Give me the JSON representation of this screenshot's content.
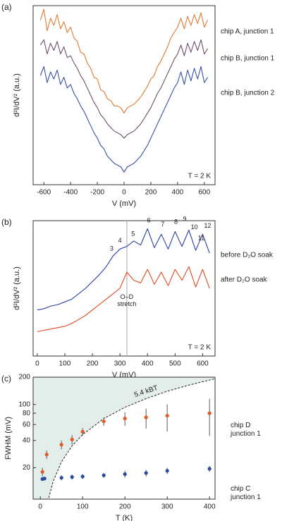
{
  "chart_data": [
    {
      "type": "line",
      "panel_label": "(a)",
      "xlabel": "V (mV)",
      "ylabel": "d²I/dV² (a.u.)",
      "annotation": "T = 2 K",
      "xlim": [
        -680,
        680
      ],
      "xticks": [
        -600,
        -400,
        -200,
        0,
        200,
        400,
        600
      ],
      "ylim": [
        0,
        10
      ],
      "x": [
        -625,
        -600,
        -575,
        -550,
        -525,
        -500,
        -475,
        -450,
        -425,
        -400,
        -375,
        -350,
        -325,
        -300,
        -275,
        -250,
        -225,
        -200,
        -175,
        -150,
        -125,
        -100,
        -75,
        -50,
        -25,
        0,
        25,
        50,
        75,
        100,
        125,
        150,
        175,
        200,
        225,
        250,
        275,
        300,
        325,
        350,
        375,
        400,
        425,
        450,
        475,
        500,
        525,
        550,
        575,
        600,
        625
      ],
      "series": [
        {
          "name": "chip A, junction 1",
          "color": "#e07a30",
          "values": [
            9.2,
            9.8,
            8.6,
            9.3,
            8.9,
            9.5,
            8.7,
            9.1,
            8.5,
            8.8,
            8.2,
            8.0,
            7.4,
            7.3,
            6.8,
            6.5,
            6.0,
            5.9,
            5.3,
            5.2,
            4.8,
            4.7,
            4.4,
            4.4,
            4.3,
            4.0,
            4.3,
            4.4,
            4.5,
            4.7,
            4.9,
            5.2,
            5.5,
            5.9,
            6.1,
            6.6,
            6.9,
            7.3,
            7.7,
            8.2,
            8.5,
            8.8,
            9.3,
            8.7,
            9.4,
            8.9,
            9.5,
            9.0,
            9.6,
            8.8,
            9.2
          ]
        },
        {
          "name": "chip B, junction 1",
          "color": "#6e4e70",
          "values": [
            7.8,
            8.1,
            7.3,
            7.9,
            7.5,
            8.0,
            7.3,
            7.7,
            7.1,
            7.2,
            6.8,
            6.5,
            6.1,
            5.8,
            5.4,
            5.0,
            4.6,
            4.3,
            3.9,
            3.7,
            3.4,
            3.2,
            3.0,
            2.9,
            2.8,
            2.6,
            2.8,
            2.9,
            3.0,
            3.2,
            3.4,
            3.7,
            4.0,
            4.3,
            4.7,
            5.1,
            5.4,
            5.8,
            6.2,
            6.6,
            7.0,
            7.3,
            7.8,
            7.2,
            7.9,
            7.4,
            8.0,
            7.5,
            8.1,
            7.3,
            7.6
          ]
        },
        {
          "name": "chip B, junction 2",
          "color": "#3a50a0",
          "values": [
            6.1,
            6.6,
            5.7,
            6.3,
            5.9,
            6.4,
            5.6,
            6.0,
            5.4,
            5.6,
            5.1,
            4.8,
            4.4,
            4.1,
            3.7,
            3.3,
            2.9,
            2.6,
            2.2,
            2.0,
            1.6,
            1.4,
            1.2,
            1.1,
            1.0,
            0.7,
            1.0,
            1.1,
            1.2,
            1.4,
            1.6,
            1.9,
            2.2,
            2.6,
            3.0,
            3.4,
            3.8,
            4.2,
            4.6,
            5.0,
            5.4,
            5.7,
            6.3,
            5.6,
            6.4,
            5.8,
            6.5,
            5.9,
            6.6,
            5.7,
            6.0
          ]
        }
      ]
    },
    {
      "type": "line",
      "panel_label": "(b)",
      "xlabel": "V (mV)",
      "ylabel": "d²I/dV² (a.u.)",
      "annotation": "T = 2 K",
      "xlim": [
        -15,
        645
      ],
      "xticks": [
        0,
        100,
        200,
        300,
        400,
        500,
        600
      ],
      "ylim": [
        0,
        10
      ],
      "vline": 325,
      "x": [
        0,
        25,
        50,
        75,
        100,
        125,
        150,
        175,
        200,
        225,
        250,
        275,
        300,
        325,
        350,
        375,
        400,
        425,
        450,
        475,
        500,
        525,
        550,
        575,
        600,
        625
      ],
      "series": [
        {
          "name": "before D₂O soak",
          "color": "#2a40a0",
          "values": [
            3.4,
            3.5,
            3.7,
            3.8,
            4.0,
            4.2,
            4.6,
            5.0,
            5.5,
            6.0,
            6.6,
            7.4,
            7.9,
            8.1,
            8.5,
            8.2,
            9.4,
            8.0,
            9.0,
            7.9,
            9.2,
            8.1,
            9.3,
            7.8,
            9.0,
            7.6
          ]
        },
        {
          "name": "after D₂O soak",
          "color": "#e04a22",
          "values": [
            1.8,
            1.9,
            2.0,
            2.1,
            2.2,
            2.4,
            2.7,
            3.0,
            3.4,
            3.8,
            4.2,
            4.6,
            5.0,
            6.2,
            5.6,
            5.4,
            6.4,
            5.3,
            6.2,
            5.2,
            6.4,
            5.6,
            6.6,
            5.1,
            6.4,
            5.0
          ]
        }
      ],
      "annotations": [
        {
          "text": "3",
          "x": 270,
          "y": 7.9
        },
        {
          "text": "4",
          "x": 300,
          "y": 8.5
        },
        {
          "text": "5",
          "x": 348,
          "y": 9.0
        },
        {
          "text": "6",
          "x": 405,
          "y": 10.0
        },
        {
          "text": "7",
          "x": 455,
          "y": 9.7
        },
        {
          "text": "8",
          "x": 503,
          "y": 9.9
        },
        {
          "text": "9",
          "x": 535,
          "y": 10.1
        },
        {
          "text": "10",
          "x": 570,
          "y": 9.5
        },
        {
          "text": "11",
          "x": 595,
          "y": 8.7
        },
        {
          "text": "12",
          "x": 618,
          "y": 9.6
        },
        {
          "text": "O–D stretch",
          "x": 325,
          "y": 4.0
        }
      ]
    },
    {
      "type": "scatter",
      "panel_label": "(c)",
      "xlabel": "T (K)",
      "ylabel": "FWHM (mV)",
      "log_y": true,
      "xlim": [
        -17,
        413
      ],
      "xticks": [
        0,
        100,
        200,
        300,
        400
      ],
      "ylim": [
        9,
        200
      ],
      "yticks": [
        20,
        40,
        60,
        80,
        100,
        200
      ],
      "threshold": {
        "label": "5.4 kBT",
        "color": "#222",
        "fill": "#e3eeea",
        "x": [
          20,
          30,
          50,
          75,
          100,
          150,
          200,
          250,
          300,
          350,
          400,
          413
        ],
        "y": [
          9.3,
          14,
          23.3,
          34.9,
          46.5,
          69.8,
          93,
          116,
          140,
          163,
          186,
          192
        ]
      },
      "series": [
        {
          "name": "chip D junction 1",
          "color": "#e05a2a",
          "x": [
            5,
            15,
            50,
            75,
            100,
            150,
            200,
            250,
            300,
            400
          ],
          "values": [
            18,
            28,
            36,
            41,
            50,
            65,
            70,
            72,
            75,
            80
          ],
          "errors": [
            2,
            3,
            4,
            5,
            5,
            7,
            12,
            18,
            25,
            35
          ]
        },
        {
          "name": "chip C junction 1",
          "color": "#2a4aa0",
          "x": [
            5,
            10,
            50,
            75,
            100,
            150,
            200,
            250,
            300,
            400
          ],
          "values": [
            15,
            15.2,
            15.5,
            15.8,
            16,
            16.5,
            17,
            17.5,
            18.5,
            19.5
          ],
          "errors": [
            0.5,
            0.5,
            1,
            1,
            1,
            1,
            1.5,
            1.5,
            1.5,
            1.5
          ]
        }
      ]
    }
  ]
}
